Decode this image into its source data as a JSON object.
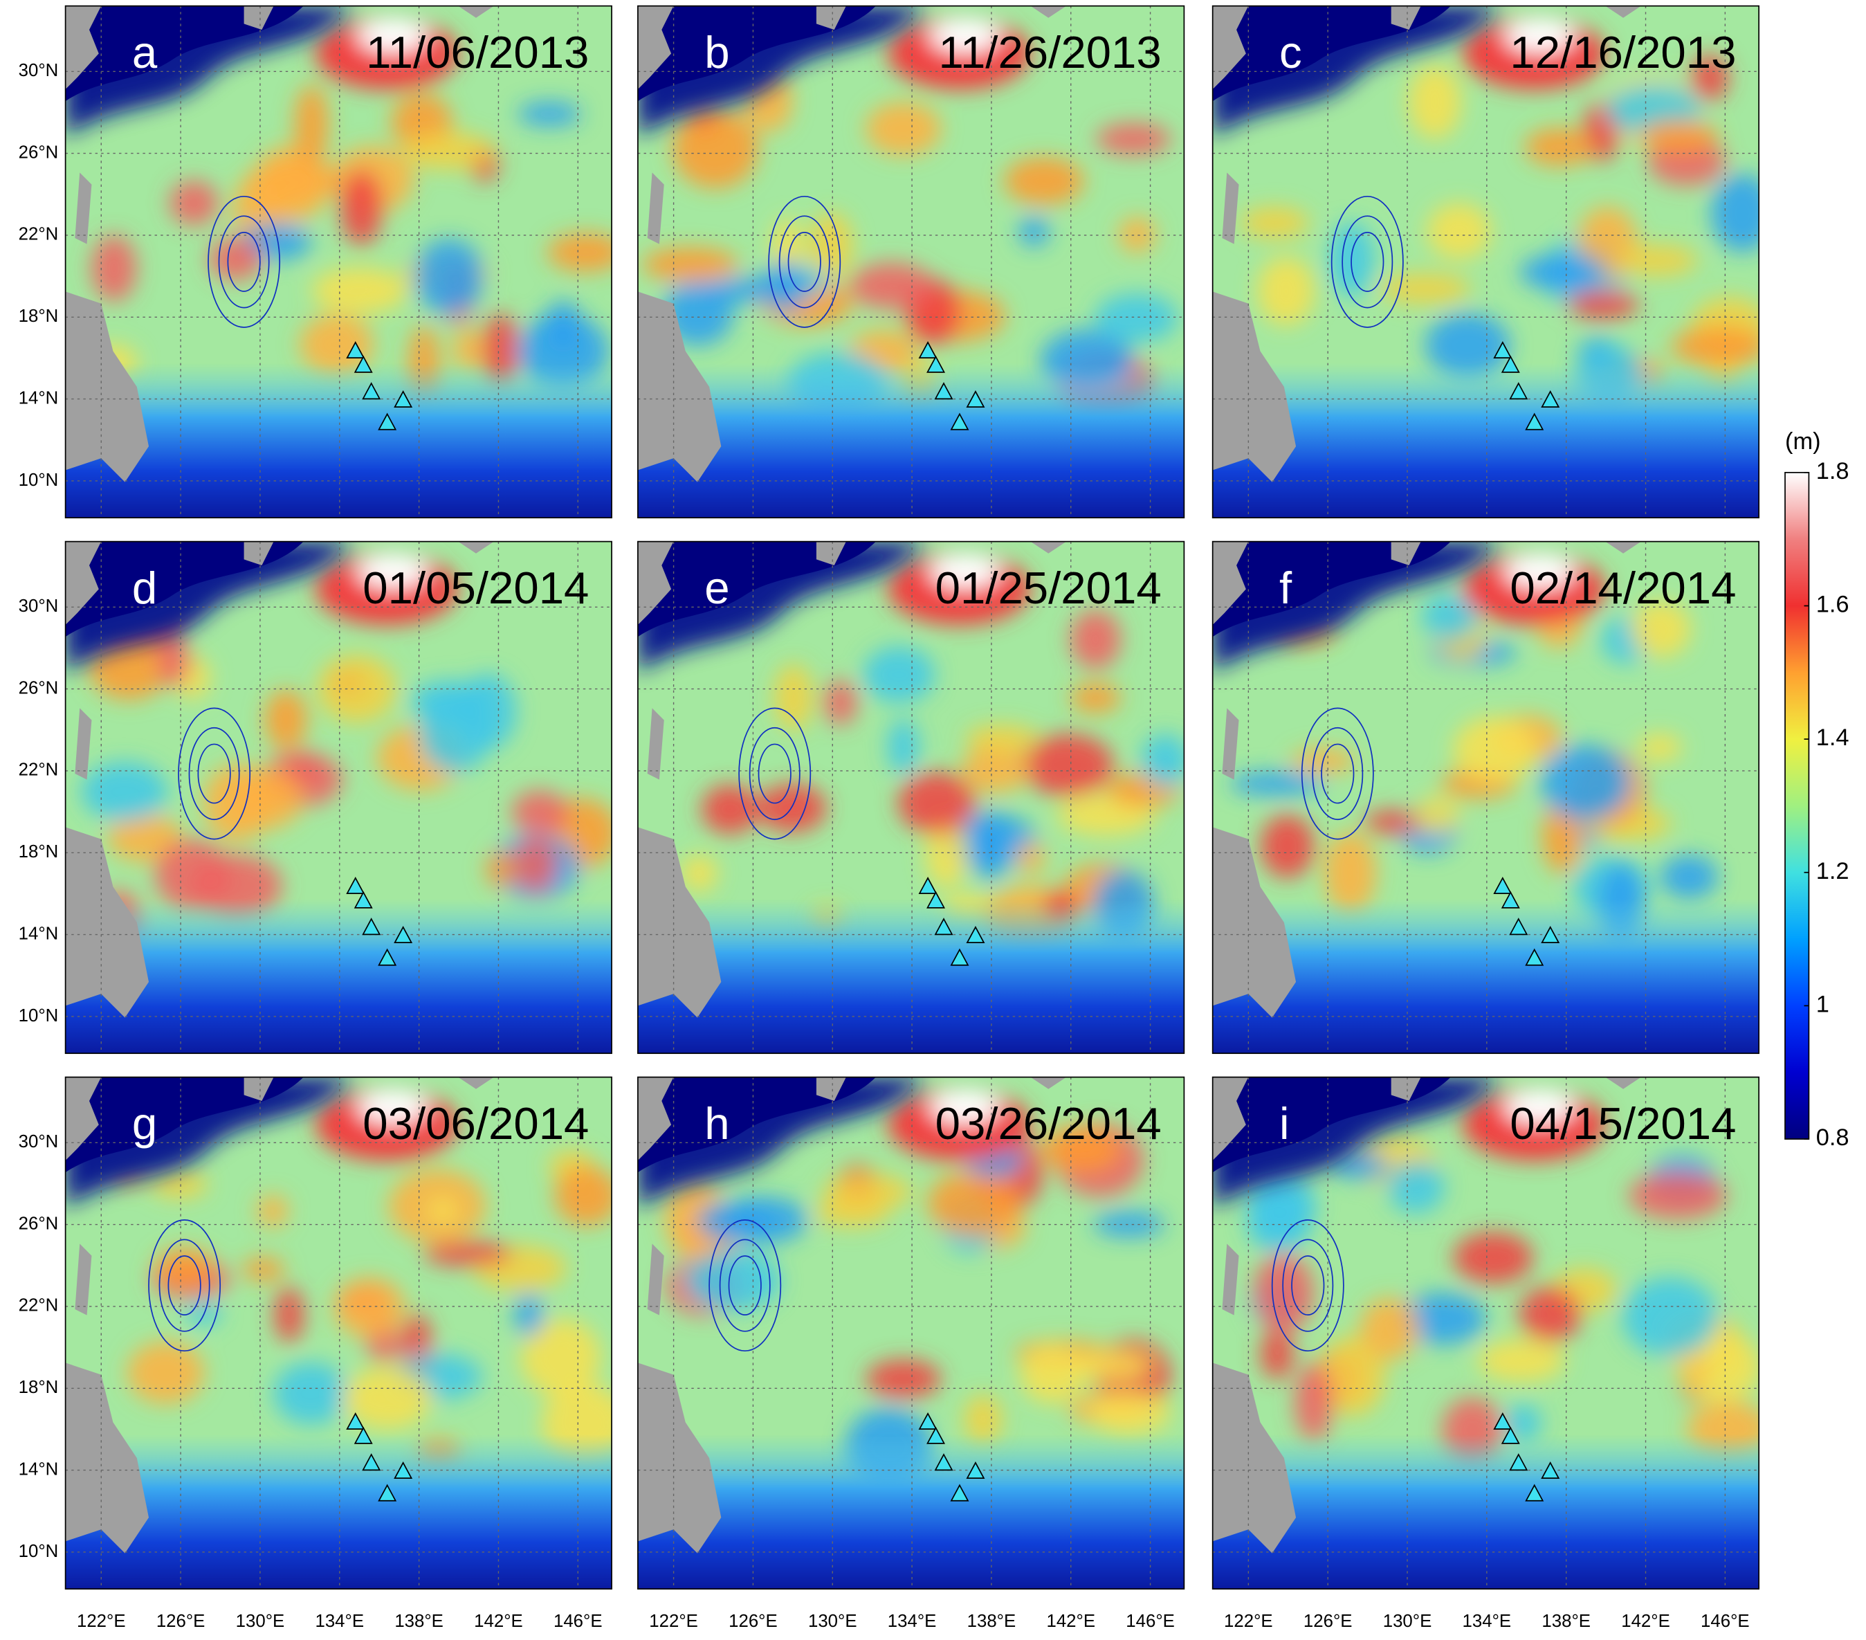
{
  "panels": [
    {
      "letter": "a",
      "date": "11/06/2013"
    },
    {
      "letter": "b",
      "date": "11/26/2013"
    },
    {
      "letter": "c",
      "date": "12/16/2013"
    },
    {
      "letter": "d",
      "date": "01/05/2014"
    },
    {
      "letter": "e",
      "date": "01/25/2014"
    },
    {
      "letter": "f",
      "date": "02/14/2014"
    },
    {
      "letter": "g",
      "date": "03/06/2014"
    },
    {
      "letter": "h",
      "date": "03/26/2014"
    },
    {
      "letter": "i",
      "date": "04/15/2014"
    }
  ],
  "map": {
    "xlim": [
      120.2,
      147.7
    ],
    "ylim": [
      8.2,
      33.2
    ],
    "lon_ticks": [
      {
        "value": 122,
        "label": "122°E"
      },
      {
        "value": 126,
        "label": "126°E"
      },
      {
        "value": 130,
        "label": "130°E"
      },
      {
        "value": 134,
        "label": "134°E"
      },
      {
        "value": 138,
        "label": "138°E"
      },
      {
        "value": 142,
        "label": "142°E"
      },
      {
        "value": 146,
        "label": "146°E"
      }
    ],
    "lat_ticks": [
      {
        "value": 10,
        "label": "10°N"
      },
      {
        "value": 14,
        "label": "14°N"
      },
      {
        "value": 18,
        "label": "18°N"
      },
      {
        "value": 22,
        "label": "22°N"
      },
      {
        "value": 26,
        "label": "26°N"
      },
      {
        "value": 30,
        "label": "30°N"
      }
    ]
  },
  "colorbar": {
    "unit": "(m)",
    "lim": [
      0.8,
      1.8
    ],
    "ticks": [
      0.8,
      1,
      1.2,
      1.4,
      1.6,
      1.8
    ]
  }
}
